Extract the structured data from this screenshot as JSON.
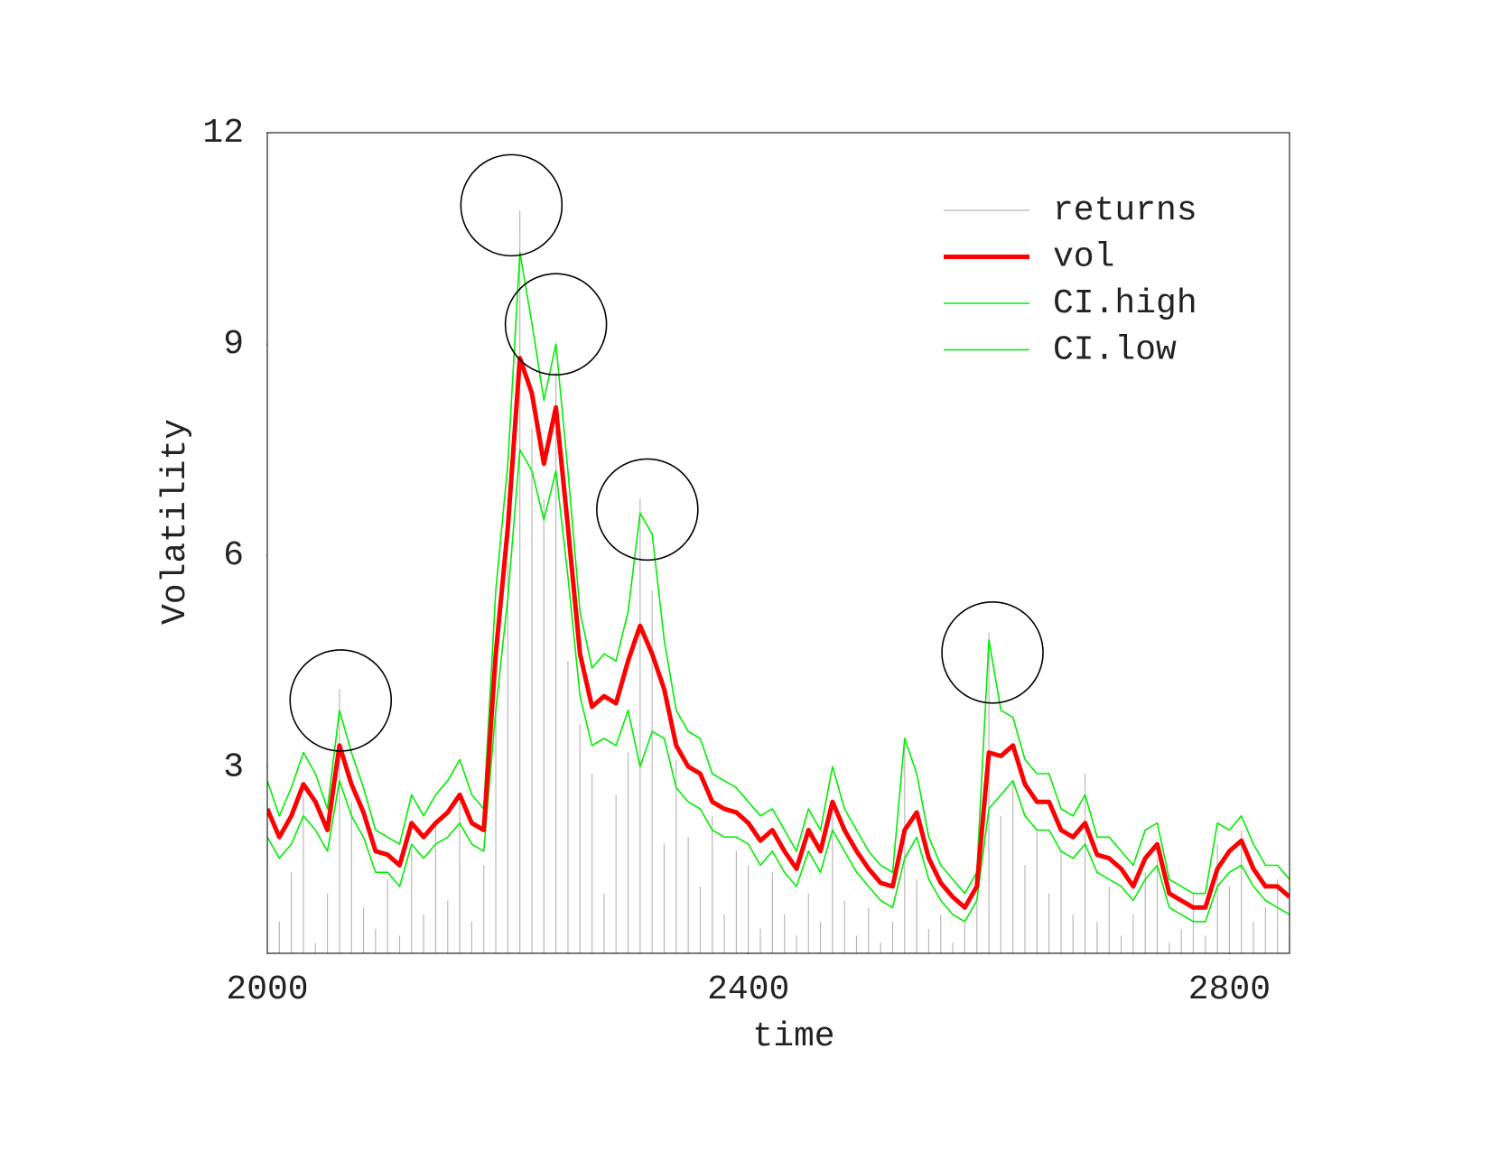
{
  "chart_data": {
    "type": "line",
    "xlabel": "time",
    "ylabel": "Volatility",
    "xlim": [
      2000,
      2850
    ],
    "ylim": [
      0.35,
      12
    ],
    "xticks": [
      2000,
      2400,
      2800
    ],
    "yticks": [
      3,
      6,
      9,
      12
    ],
    "legend": "topright",
    "x": [
      2000,
      2010,
      2020,
      2030,
      2040,
      2050,
      2060,
      2070,
      2080,
      2090,
      2100,
      2110,
      2120,
      2130,
      2140,
      2150,
      2160,
      2170,
      2180,
      2190,
      2200,
      2210,
      2220,
      2230,
      2240,
      2250,
      2260,
      2270,
      2280,
      2290,
      2300,
      2310,
      2320,
      2330,
      2340,
      2350,
      2360,
      2370,
      2380,
      2390,
      2400,
      2410,
      2420,
      2430,
      2440,
      2450,
      2460,
      2470,
      2480,
      2490,
      2500,
      2510,
      2520,
      2530,
      2540,
      2550,
      2560,
      2570,
      2580,
      2590,
      2600,
      2610,
      2620,
      2630,
      2640,
      2650,
      2660,
      2670,
      2680,
      2690,
      2700,
      2710,
      2720,
      2730,
      2740,
      2750,
      2760,
      2770,
      2780,
      2790,
      2800,
      2810,
      2820,
      2830,
      2840,
      2850
    ],
    "series": [
      {
        "name": "returns",
        "style": "spikes",
        "color": "#b8b8b8",
        "values": [
          1.9,
          0.8,
          1.5,
          2.6,
          0.5,
          1.2,
          4.1,
          2.5,
          1.0,
          0.7,
          1.4,
          0.6,
          1.8,
          0.9,
          2.2,
          1.1,
          2.5,
          0.8,
          1.6,
          3.8,
          5.9,
          10.9,
          7.8,
          6.8,
          8.6,
          4.5,
          3.6,
          2.9,
          1.2,
          2.6,
          3.2,
          6.8,
          5.5,
          1.9,
          3.1,
          2.0,
          1.3,
          2.3,
          0.9,
          1.8,
          1.6,
          0.7,
          1.5,
          0.9,
          0.6,
          1.2,
          0.8,
          2.4,
          1.1,
          0.6,
          1.0,
          0.5,
          0.8,
          3.3,
          1.4,
          0.7,
          0.9,
          0.5,
          0.8,
          1.1,
          4.9,
          2.3,
          2.8,
          1.6,
          2.1,
          1.2,
          1.8,
          0.9,
          2.9,
          0.8,
          1.3,
          0.6,
          0.9,
          1.5,
          1.7,
          0.5,
          0.7,
          1.2,
          0.6,
          1.9,
          1.3,
          2.1,
          0.8,
          1.0,
          1.4,
          0.6
        ]
      },
      {
        "name": "vol",
        "style": "thick",
        "color": "#ff0000",
        "values": [
          2.4,
          2.0,
          2.3,
          2.75,
          2.5,
          2.1,
          3.3,
          2.75,
          2.35,
          1.8,
          1.75,
          1.6,
          2.2,
          2.0,
          2.2,
          2.35,
          2.6,
          2.2,
          2.1,
          4.6,
          6.4,
          8.8,
          8.3,
          7.3,
          8.1,
          6.4,
          4.6,
          3.85,
          4.0,
          3.9,
          4.5,
          5.0,
          4.6,
          4.1,
          3.3,
          3.0,
          2.9,
          2.5,
          2.4,
          2.35,
          2.2,
          1.95,
          2.1,
          1.8,
          1.55,
          2.1,
          1.8,
          2.5,
          2.1,
          1.8,
          1.55,
          1.35,
          1.3,
          2.1,
          2.35,
          1.7,
          1.35,
          1.15,
          1.0,
          1.3,
          3.2,
          3.15,
          3.3,
          2.75,
          2.5,
          2.5,
          2.1,
          2.0,
          2.2,
          1.75,
          1.7,
          1.55,
          1.3,
          1.7,
          1.9,
          1.2,
          1.1,
          1.0,
          1.0,
          1.55,
          1.8,
          1.95,
          1.55,
          1.3,
          1.3,
          1.15
        ]
      },
      {
        "name": "CI.high",
        "style": "thin",
        "color": "#00ee00",
        "values": [
          2.8,
          2.3,
          2.7,
          3.2,
          2.9,
          2.4,
          3.8,
          3.2,
          2.7,
          2.1,
          2.0,
          1.9,
          2.6,
          2.3,
          2.6,
          2.8,
          3.1,
          2.6,
          2.4,
          5.5,
          7.3,
          10.3,
          9.3,
          8.2,
          9.0,
          7.2,
          5.2,
          4.4,
          4.6,
          4.5,
          5.2,
          6.6,
          6.3,
          4.8,
          3.8,
          3.5,
          3.4,
          2.9,
          2.8,
          2.7,
          2.5,
          2.3,
          2.4,
          2.1,
          1.8,
          2.4,
          2.1,
          3.0,
          2.4,
          2.1,
          1.8,
          1.6,
          1.5,
          3.4,
          2.9,
          2.0,
          1.6,
          1.4,
          1.2,
          1.5,
          4.8,
          3.8,
          3.7,
          3.1,
          2.9,
          2.9,
          2.4,
          2.3,
          2.6,
          2.0,
          2.0,
          1.8,
          1.6,
          2.1,
          2.2,
          1.4,
          1.3,
          1.2,
          1.2,
          2.2,
          2.1,
          2.3,
          1.9,
          1.6,
          1.6,
          1.4
        ]
      },
      {
        "name": "CI.low",
        "style": "thin",
        "color": "#00ee00",
        "values": [
          2.0,
          1.7,
          1.9,
          2.3,
          2.1,
          1.8,
          2.8,
          2.3,
          2.0,
          1.5,
          1.5,
          1.3,
          1.9,
          1.7,
          1.9,
          2.0,
          2.2,
          1.9,
          1.8,
          3.8,
          5.4,
          7.5,
          7.2,
          6.5,
          7.2,
          5.7,
          4.0,
          3.3,
          3.4,
          3.3,
          3.8,
          3.0,
          3.5,
          3.4,
          2.7,
          2.5,
          2.4,
          2.1,
          2.0,
          2.0,
          1.9,
          1.6,
          1.8,
          1.5,
          1.3,
          1.8,
          1.5,
          2.1,
          1.8,
          1.5,
          1.3,
          1.1,
          1.0,
          1.7,
          2.0,
          1.4,
          1.1,
          0.9,
          0.8,
          1.1,
          2.4,
          2.6,
          2.8,
          2.3,
          2.1,
          2.1,
          1.8,
          1.7,
          1.9,
          1.5,
          1.4,
          1.3,
          1.1,
          1.4,
          1.6,
          1.0,
          0.9,
          0.8,
          0.8,
          1.3,
          1.5,
          1.6,
          1.3,
          1.1,
          1.0,
          0.9
        ]
      }
    ],
    "highlights": [
      {
        "x": 2061,
        "y": 3.94
      },
      {
        "x": 2203,
        "y": 10.97
      },
      {
        "x": 2240,
        "y": 9.28
      },
      {
        "x": 2316,
        "y": 6.65
      },
      {
        "x": 2603,
        "y": 4.62
      }
    ]
  }
}
